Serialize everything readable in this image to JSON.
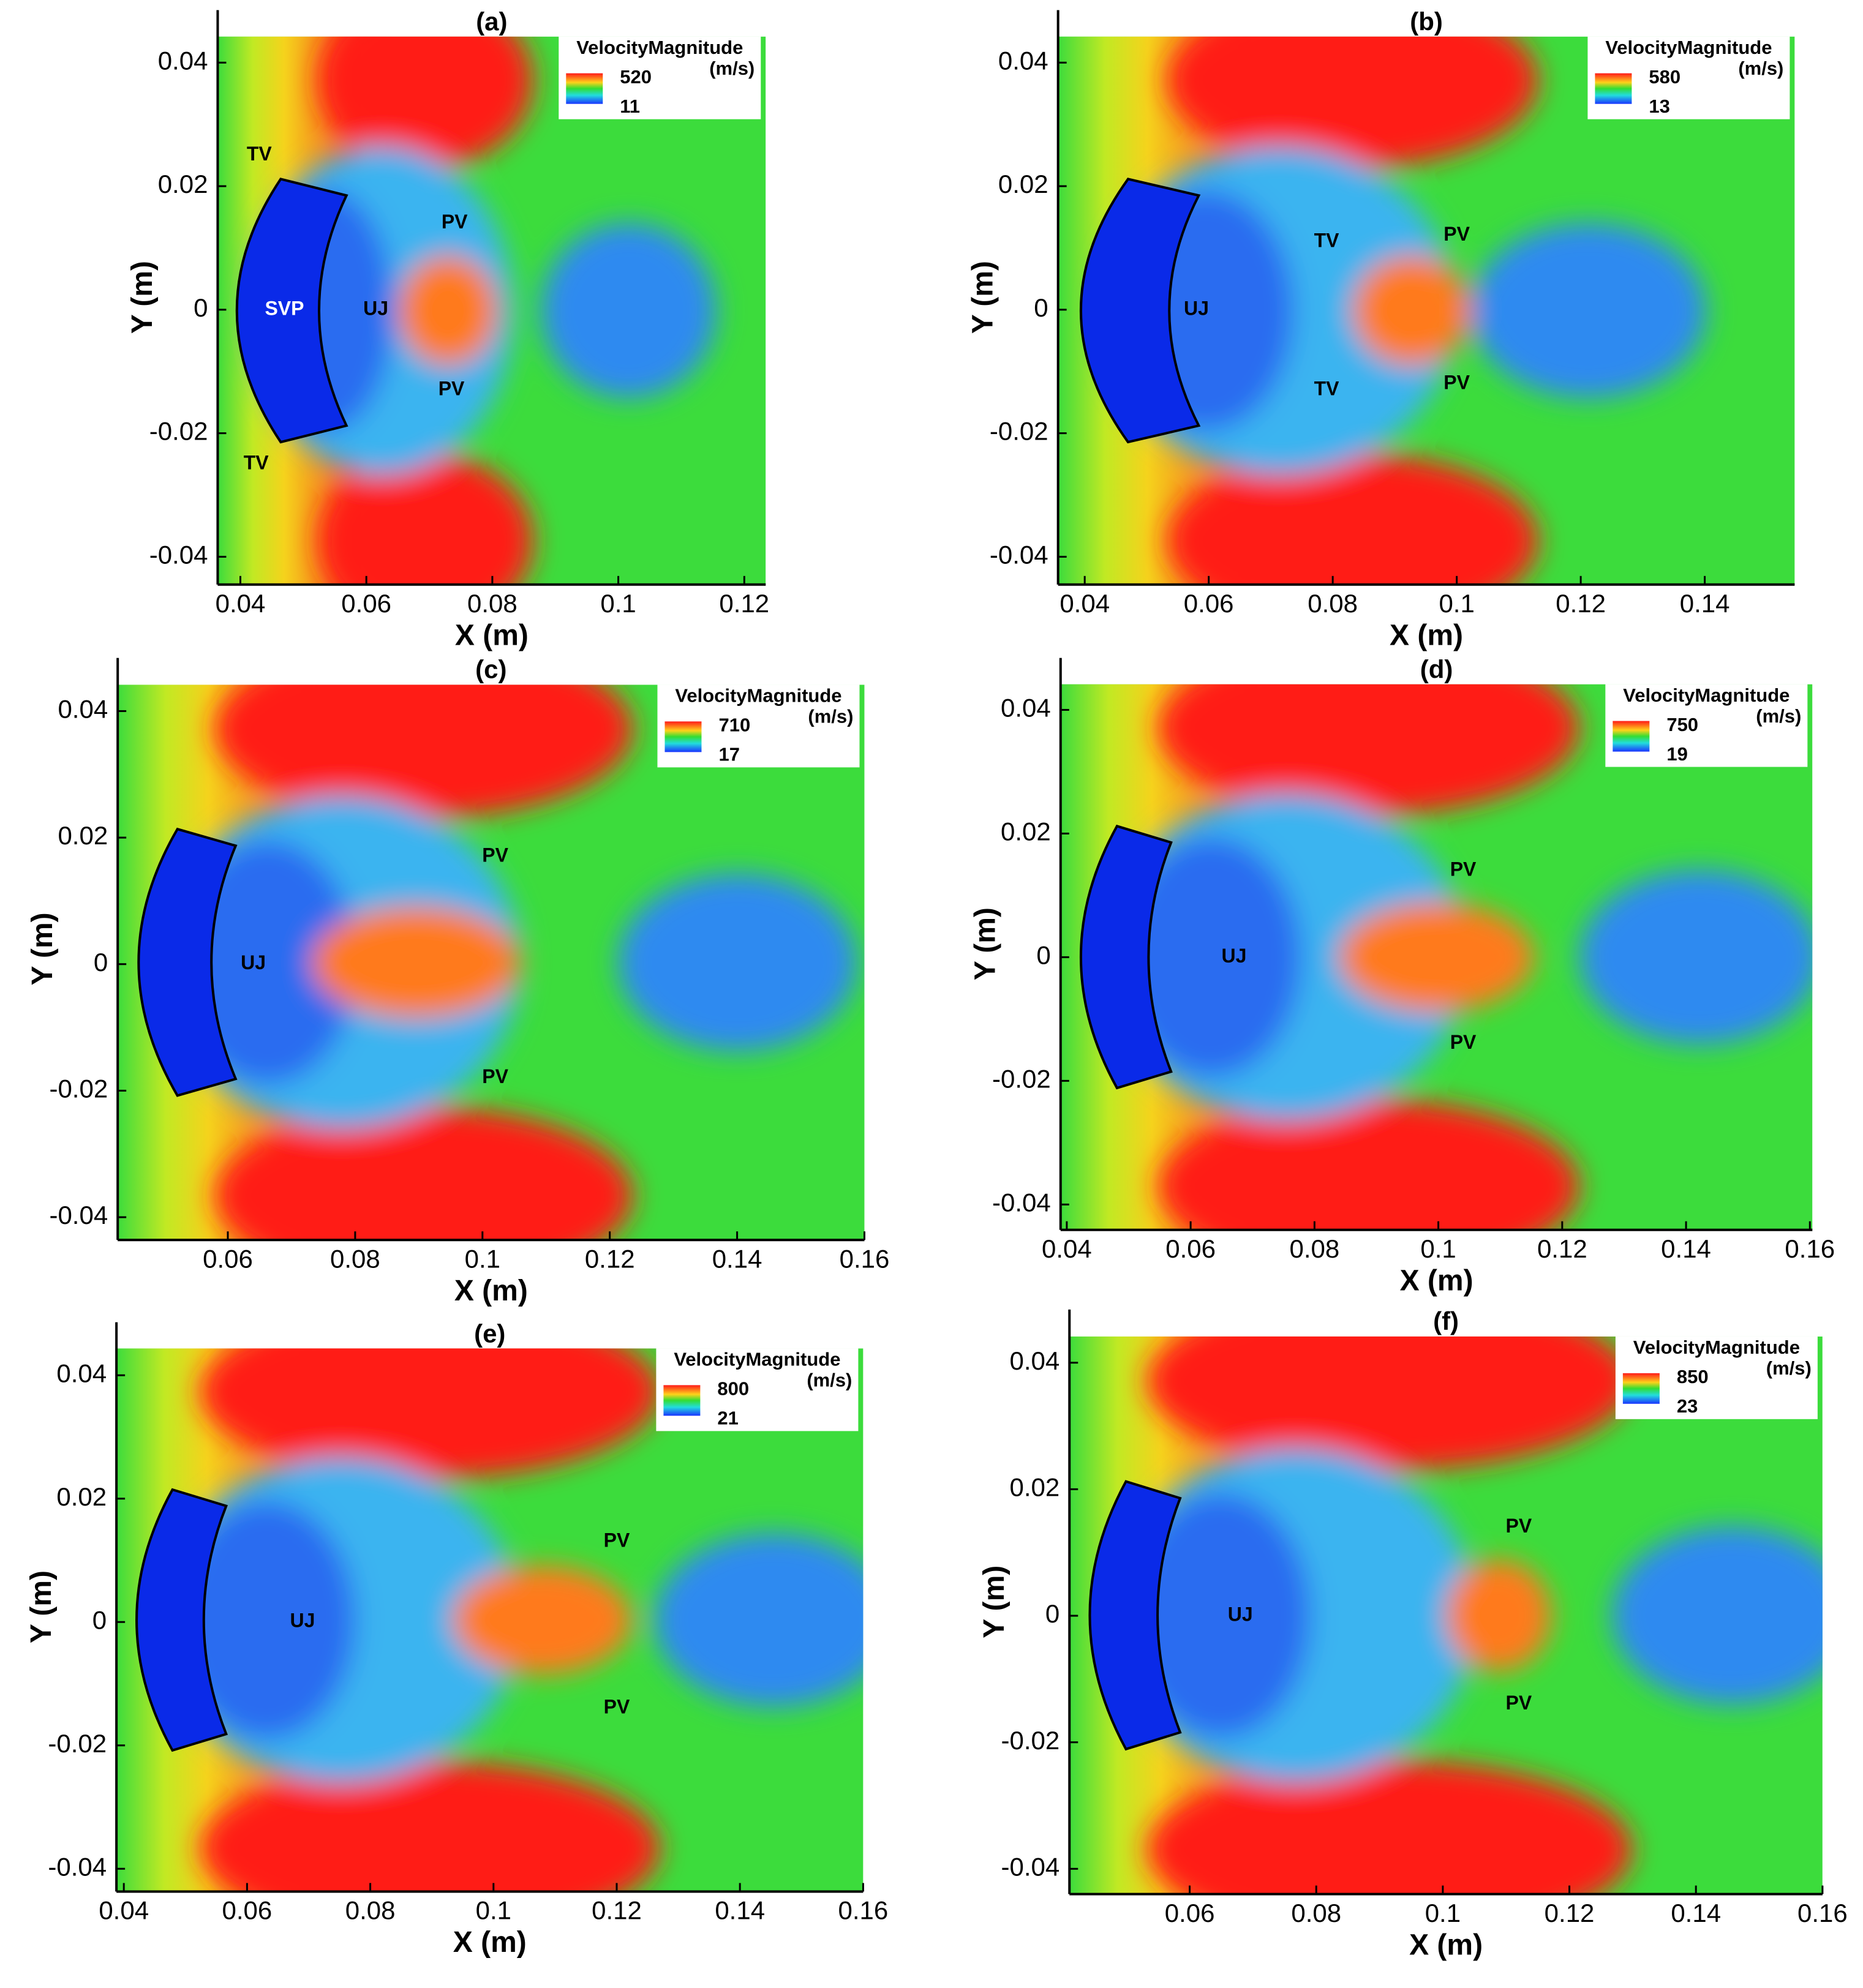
{
  "chart_data": [
    {
      "type": "contour",
      "title": "(a)",
      "x_label": "X (m)",
      "y_label": "Y (m)",
      "xlim": [
        0.0364,
        0.1234
      ],
      "ylim": [
        -0.0445,
        0.0485
      ],
      "xticks": [
        0.04,
        0.06,
        0.08,
        0.1,
        0.12
      ],
      "yticks": [
        -0.04,
        -0.02,
        0,
        0.02,
        0.04
      ],
      "colorbar": {
        "title": "VelocityMagnitude",
        "unit": "(m/s)",
        "max": 520,
        "min": 11
      },
      "annotations": [
        {
          "text": "TV",
          "x": 0.043,
          "y": 0.025
        },
        {
          "text": "PV",
          "x": 0.074,
          "y": 0.014
        },
        {
          "text": "SVP",
          "x": 0.047,
          "y": 0,
          "color": "#ffffff"
        },
        {
          "text": "UJ",
          "x": 0.0615,
          "y": 0
        },
        {
          "text": "PV",
          "x": 0.0735,
          "y": -0.013
        },
        {
          "text": "TV",
          "x": 0.0425,
          "y": -0.025
        }
      ]
    },
    {
      "type": "contour",
      "title": "(b)",
      "x_label": "X (m)",
      "y_label": "Y (m)",
      "xlim": [
        0.0357,
        0.1545
      ],
      "ylim": [
        -0.0445,
        0.0485
      ],
      "xticks": [
        0.04,
        0.06,
        0.08,
        0.1,
        0.12,
        0.14
      ],
      "yticks": [
        -0.04,
        -0.02,
        0,
        0.02,
        0.04
      ],
      "colorbar": {
        "title": "VelocityMagnitude",
        "unit": "(m/s)",
        "max": 580,
        "min": 13
      },
      "annotations": [
        {
          "text": "TV",
          "x": 0.079,
          "y": 0.011
        },
        {
          "text": "PV",
          "x": 0.1,
          "y": 0.012
        },
        {
          "text": "UJ",
          "x": 0.058,
          "y": 0
        },
        {
          "text": "TV",
          "x": 0.079,
          "y": -0.013
        },
        {
          "text": "PV",
          "x": 0.1,
          "y": -0.012
        }
      ]
    },
    {
      "type": "contour",
      "title": "(c)",
      "x_label": "X (m)",
      "y_label": "Y (m)",
      "xlim": [
        0.0427,
        0.16
      ],
      "ylim": [
        -0.0436,
        0.0484
      ],
      "xticks": [
        0.06,
        0.08,
        0.1,
        0.12,
        0.14,
        0.16
      ],
      "yticks": [
        -0.04,
        -0.02,
        0,
        0.02,
        0.04
      ],
      "colorbar": {
        "title": "VelocityMagnitude",
        "unit": "(m/s)",
        "max": 710,
        "min": 17
      },
      "annotations": [
        {
          "text": "PV",
          "x": 0.102,
          "y": 0.017
        },
        {
          "text": "UJ",
          "x": 0.064,
          "y": 0
        },
        {
          "text": "PV",
          "x": 0.102,
          "y": -0.018
        }
      ]
    },
    {
      "type": "contour",
      "title": "(d)",
      "x_label": "X (m)",
      "y_label": "Y (m)",
      "xlim": [
        0.039,
        0.1604
      ],
      "ylim": [
        -0.0441,
        0.0484
      ],
      "xticks": [
        0.04,
        0.06,
        0.08,
        0.1,
        0.12,
        0.14,
        0.16
      ],
      "yticks": [
        -0.04,
        -0.02,
        0,
        0.02,
        0.04
      ],
      "colorbar": {
        "title": "VelocityMagnitude",
        "unit": "(m/s)",
        "max": 750,
        "min": 19
      },
      "annotations": [
        {
          "text": "PV",
          "x": 0.104,
          "y": 0.014
        },
        {
          "text": "UJ",
          "x": 0.067,
          "y": 0
        },
        {
          "text": "PV",
          "x": 0.104,
          "y": -0.014
        }
      ]
    },
    {
      "type": "contour",
      "title": "(e)",
      "x_label": "X (m)",
      "y_label": "Y (m)",
      "xlim": [
        0.0388,
        0.16
      ],
      "ylim": [
        -0.0437,
        0.0486
      ],
      "xticks": [
        0.04,
        0.06,
        0.08,
        0.1,
        0.12,
        0.14,
        0.16
      ],
      "yticks": [
        -0.04,
        -0.02,
        0,
        0.02,
        0.04
      ],
      "colorbar": {
        "title": "VelocityMagnitude",
        "unit": "(m/s)",
        "max": 800,
        "min": 21
      },
      "annotations": [
        {
          "text": "PV",
          "x": 0.12,
          "y": 0.013
        },
        {
          "text": "UJ",
          "x": 0.069,
          "y": 0
        },
        {
          "text": "PV",
          "x": 0.12,
          "y": -0.014
        }
      ]
    },
    {
      "type": "contour",
      "title": "(f)",
      "x_label": "X (m)",
      "y_label": "Y (m)",
      "xlim": [
        0.041,
        0.16
      ],
      "ylim": [
        -0.044,
        0.0484
      ],
      "xticks": [
        0.06,
        0.08,
        0.1,
        0.12,
        0.14,
        0.16
      ],
      "yticks": [
        -0.04,
        -0.02,
        0,
        0.02,
        0.04
      ],
      "colorbar": {
        "title": "VelocityMagnitude",
        "unit": "(m/s)",
        "max": 850,
        "min": 23
      },
      "annotations": [
        {
          "text": "PV",
          "x": 0.112,
          "y": 0.014
        },
        {
          "text": "UJ",
          "x": 0.068,
          "y": 0
        },
        {
          "text": "PV",
          "x": 0.112,
          "y": -0.014
        }
      ]
    }
  ]
}
